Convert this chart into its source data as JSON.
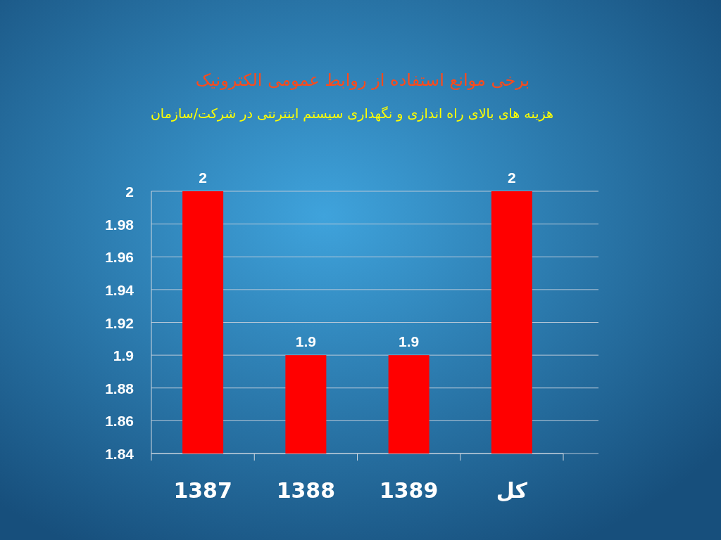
{
  "chart_data": {
    "type": "bar",
    "title": "برخی موانع استفاده از روابط عمومی الکترونیک",
    "subtitle": "هزینه های بالای راه اندازی و نگهداری سیستم اینترنتی در شرکت/سازمان",
    "categories": [
      "1387",
      "1388",
      "1389",
      "کل"
    ],
    "values": [
      2,
      1.9,
      1.9,
      2
    ],
    "color": "#ff0000",
    "ylim": [
      1.84,
      2
    ],
    "yticks": [
      1.84,
      1.86,
      1.88,
      1.9,
      1.92,
      1.94,
      1.96,
      1.98,
      2
    ],
    "grid": "y",
    "data_labels": true
  }
}
